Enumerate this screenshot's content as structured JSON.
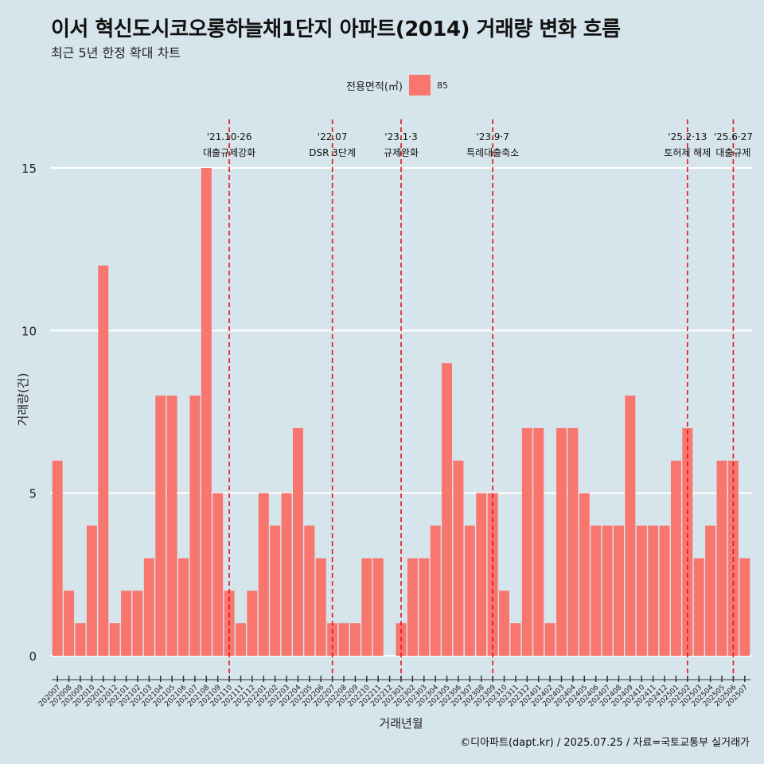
{
  "title": "이서 혁신도시코오롱하늘채1단지 아파트(2014) 거래량 변화 흐름",
  "subtitle": "최근 5년 한정 확대 차트",
  "legend": {
    "title": "전용면적(㎡)",
    "item": "85",
    "color": "#f8766d"
  },
  "caption": "©디아파트(dapt.kr) / 2025.07.25 / 자료=국토교통부 실거래가",
  "chart_data": {
    "type": "bar",
    "xlabel": "거래년월",
    "ylabel": "거래량(건)",
    "ylim": [
      0,
      15
    ],
    "yticks": [
      0,
      5,
      10,
      15
    ],
    "grid": true,
    "legend_position": "top",
    "categories": [
      "202007",
      "202008",
      "202009",
      "202010",
      "202011",
      "202012",
      "202101",
      "202102",
      "202103",
      "202104",
      "202105",
      "202106",
      "202107",
      "202108",
      "202109",
      "202110",
      "202111",
      "202112",
      "202201",
      "202202",
      "202203",
      "202204",
      "202205",
      "202206",
      "202207",
      "202208",
      "202209",
      "202210",
      "202211",
      "202212",
      "202301",
      "202302",
      "202303",
      "202304",
      "202305",
      "202306",
      "202307",
      "202308",
      "202309",
      "202310",
      "202311",
      "202312",
      "202401",
      "202402",
      "202403",
      "202404",
      "202405",
      "202406",
      "202407",
      "202408",
      "202409",
      "202410",
      "202411",
      "202412",
      "202501",
      "202502",
      "202503",
      "202504",
      "202505",
      "202506",
      "202507"
    ],
    "series": [
      {
        "name": "85",
        "color": "#f8766d",
        "values": [
          6,
          2,
          1,
          4,
          12,
          1,
          2,
          2,
          3,
          8,
          8,
          3,
          8,
          15,
          5,
          2,
          1,
          2,
          5,
          4,
          5,
          7,
          4,
          3,
          1,
          1,
          1,
          3,
          3,
          0,
          1,
          3,
          3,
          4,
          9,
          6,
          4,
          5,
          5,
          2,
          1,
          7,
          7,
          1,
          7,
          7,
          5,
          4,
          4,
          4,
          8,
          4,
          4,
          4,
          6,
          7,
          3,
          4,
          6,
          6,
          3
        ]
      }
    ],
    "events": [
      {
        "at": "202110",
        "date": "'21.10·26",
        "label": "대출규제강화"
      },
      {
        "at": "202207",
        "date": "'22.07",
        "label": "DSR 3단계"
      },
      {
        "at": "202301",
        "date": "'23.1·3",
        "label": "규제완화"
      },
      {
        "at": "202309",
        "date": "'23.9·7",
        "label": "특례대출축소"
      },
      {
        "at": "202502",
        "date": "'25.2·13",
        "label": "토허제 해제"
      },
      {
        "at": "202506",
        "date": "'25.6·27",
        "label": "대출규제"
      }
    ]
  }
}
